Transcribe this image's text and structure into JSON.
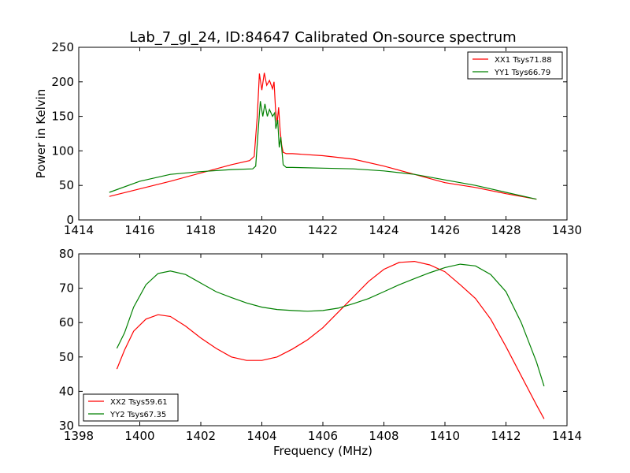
{
  "title": "Lab_7_gl_24, ID:84647 Calibrated On-source spectrum",
  "chart_data": [
    {
      "type": "line",
      "ylabel": "Power in Kelvin",
      "xlabel": "",
      "xlim": [
        1414,
        1430
      ],
      "ylim": [
        0,
        250
      ],
      "xticks": [
        1414,
        1416,
        1418,
        1420,
        1422,
        1424,
        1426,
        1428,
        1430
      ],
      "yticks": [
        0,
        50,
        100,
        150,
        200,
        250
      ],
      "legend": "top-right",
      "series": [
        {
          "name": "XX1 Tsys71.88",
          "color": "#ff0000",
          "points": [
            [
              1415,
              34
            ],
            [
              1416,
              45
            ],
            [
              1417,
              56
            ],
            [
              1418,
              68
            ],
            [
              1419,
              80
            ],
            [
              1419.6,
              86
            ],
            [
              1419.75,
              92
            ],
            [
              1419.85,
              150
            ],
            [
              1419.92,
              212
            ],
            [
              1420.0,
              188
            ],
            [
              1420.08,
              213
            ],
            [
              1420.16,
              195
            ],
            [
              1420.25,
              202
            ],
            [
              1420.35,
              190
            ],
            [
              1420.4,
              200
            ],
            [
              1420.45,
              160
            ],
            [
              1420.5,
              140
            ],
            [
              1420.55,
              163
            ],
            [
              1420.6,
              130
            ],
            [
              1420.65,
              108
            ],
            [
              1420.7,
              98
            ],
            [
              1420.8,
              96
            ],
            [
              1421,
              96
            ],
            [
              1422,
              93
            ],
            [
              1423,
              88
            ],
            [
              1424,
              78
            ],
            [
              1425,
              66
            ],
            [
              1426,
              54
            ],
            [
              1427,
              47
            ],
            [
              1428,
              38
            ],
            [
              1429,
              30
            ]
          ]
        },
        {
          "name": "YY1 Tsys66.79",
          "color": "#008000",
          "points": [
            [
              1415,
              40
            ],
            [
              1416,
              56
            ],
            [
              1417,
              66
            ],
            [
              1418,
              70
            ],
            [
              1419,
              73
            ],
            [
              1419.7,
              74
            ],
            [
              1419.8,
              78
            ],
            [
              1419.88,
              130
            ],
            [
              1419.95,
              172
            ],
            [
              1420.03,
              150
            ],
            [
              1420.1,
              168
            ],
            [
              1420.18,
              150
            ],
            [
              1420.25,
              160
            ],
            [
              1420.35,
              150
            ],
            [
              1420.42,
              155
            ],
            [
              1420.46,
              132
            ],
            [
              1420.52,
              145
            ],
            [
              1420.57,
              105
            ],
            [
              1420.62,
              120
            ],
            [
              1420.7,
              80
            ],
            [
              1420.8,
              76
            ],
            [
              1421,
              76
            ],
            [
              1422,
              75
            ],
            [
              1423,
              74
            ],
            [
              1424,
              71
            ],
            [
              1425,
              66
            ],
            [
              1426,
              58
            ],
            [
              1427,
              50
            ],
            [
              1428,
              40
            ],
            [
              1429,
              30
            ]
          ]
        }
      ]
    },
    {
      "type": "line",
      "ylabel": "",
      "xlabel": "Frequency (MHz)",
      "xlim": [
        1398,
        1414
      ],
      "ylim": [
        30,
        80
      ],
      "xticks": [
        1398,
        1400,
        1402,
        1404,
        1406,
        1408,
        1410,
        1412,
        1414
      ],
      "yticks": [
        30,
        40,
        50,
        60,
        70,
        80
      ],
      "legend": "bottom-left",
      "series": [
        {
          "name": "XX2 Tsys59.61",
          "color": "#ff0000",
          "points": [
            [
              1399.25,
              46.5
            ],
            [
              1399.5,
              52
            ],
            [
              1399.8,
              57.5
            ],
            [
              1400.2,
              61
            ],
            [
              1400.6,
              62.3
            ],
            [
              1401,
              61.8
            ],
            [
              1401.5,
              59
            ],
            [
              1402,
              55.5
            ],
            [
              1402.5,
              52.5
            ],
            [
              1403,
              50
            ],
            [
              1403.5,
              49
            ],
            [
              1404,
              49
            ],
            [
              1404.5,
              50
            ],
            [
              1405,
              52.3
            ],
            [
              1405.5,
              55
            ],
            [
              1406,
              58.5
            ],
            [
              1406.5,
              63
            ],
            [
              1407,
              67.5
            ],
            [
              1407.5,
              72
            ],
            [
              1408,
              75.5
            ],
            [
              1408.5,
              77.5
            ],
            [
              1409,
              77.8
            ],
            [
              1409.5,
              76.8
            ],
            [
              1410,
              74.8
            ],
            [
              1410.5,
              71
            ],
            [
              1411,
              67
            ],
            [
              1411.5,
              61
            ],
            [
              1412,
              53
            ],
            [
              1412.5,
              44.5
            ],
            [
              1413,
              36
            ],
            [
              1413.25,
              32
            ]
          ]
        },
        {
          "name": "YY2 Tsys67.35",
          "color": "#008000",
          "points": [
            [
              1399.25,
              52.5
            ],
            [
              1399.5,
              57
            ],
            [
              1399.8,
              64.5
            ],
            [
              1400.2,
              71
            ],
            [
              1400.6,
              74.3
            ],
            [
              1401,
              75
            ],
            [
              1401.5,
              74
            ],
            [
              1402,
              71.5
            ],
            [
              1402.5,
              69
            ],
            [
              1403,
              67.3
            ],
            [
              1403.5,
              65.7
            ],
            [
              1404,
              64.5
            ],
            [
              1404.5,
              63.8
            ],
            [
              1405,
              63.5
            ],
            [
              1405.5,
              63.3
            ],
            [
              1406,
              63.5
            ],
            [
              1406.5,
              64.2
            ],
            [
              1407,
              65.5
            ],
            [
              1407.5,
              67
            ],
            [
              1408,
              69
            ],
            [
              1408.5,
              71
            ],
            [
              1409,
              72.8
            ],
            [
              1409.5,
              74.5
            ],
            [
              1410,
              76
            ],
            [
              1410.5,
              77
            ],
            [
              1411,
              76.5
            ],
            [
              1411.5,
              74
            ],
            [
              1412,
              69
            ],
            [
              1412.5,
              60
            ],
            [
              1413,
              48.5
            ],
            [
              1413.25,
              41.5
            ]
          ]
        }
      ]
    }
  ]
}
